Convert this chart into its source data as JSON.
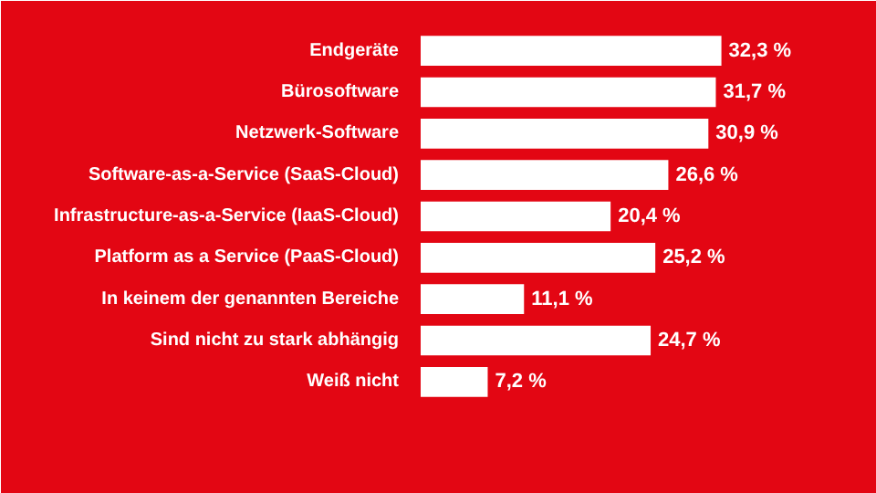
{
  "chart_data": {
    "type": "bar",
    "orientation": "horizontal",
    "categories": [
      "Endgeräte",
      "Bürosoftware",
      "Netzwerk-Software",
      "Software-as-a-Service (SaaS-Cloud)",
      "Infrastructure-as-a-Service (IaaS-Cloud)",
      "Platform as a Service (PaaS-Cloud)",
      "In keinem der genannten Bereiche",
      "Sind nicht zu stark abhängig",
      "Weiß nicht"
    ],
    "values": [
      32.3,
      31.7,
      30.9,
      26.6,
      20.4,
      25.2,
      11.1,
      24.7,
      7.2
    ],
    "value_labels": [
      "32,3 %",
      "31,7 %",
      "30,9 %",
      "26,6 %",
      "20,4 %",
      "25,2 %",
      "11,1 %",
      "24,7 %",
      "7,2 %"
    ],
    "color": "#ffffff",
    "xlim": [
      0,
      49
    ],
    "grid": false
  }
}
